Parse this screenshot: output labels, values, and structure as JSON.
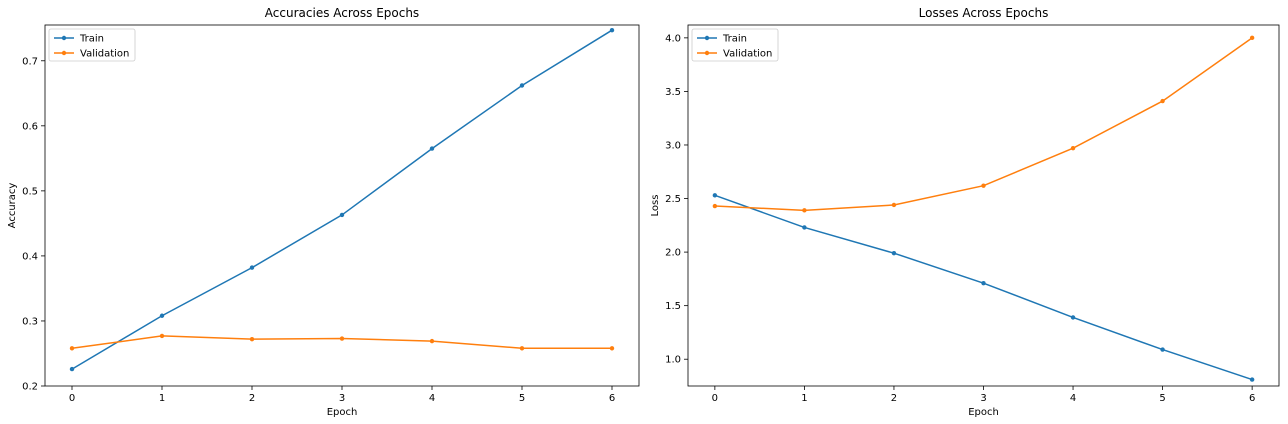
{
  "chart_data": [
    {
      "type": "line",
      "title": "Accuracies Across Epochs",
      "xlabel": "Epoch",
      "ylabel": "Accuracy",
      "x": [
        0,
        1,
        2,
        3,
        4,
        5,
        6
      ],
      "xlim": [
        -0.3,
        6.3
      ],
      "ylim": [
        0.2,
        0.755
      ],
      "xticks": [
        0,
        1,
        2,
        3,
        4,
        5,
        6
      ],
      "yticks": [
        0.2,
        0.3,
        0.4,
        0.5,
        0.6,
        0.7
      ],
      "ytick_labels": [
        "0.2",
        "0.3",
        "0.4",
        "0.5",
        "0.6",
        "0.7"
      ],
      "legend": "top-left",
      "grid": false,
      "series": [
        {
          "name": "Train",
          "color": "#1f77b4",
          "values": [
            0.226,
            0.308,
            0.382,
            0.463,
            0.565,
            0.662,
            0.747
          ]
        },
        {
          "name": "Validation",
          "color": "#ff7f0e",
          "values": [
            0.258,
            0.277,
            0.272,
            0.273,
            0.269,
            0.258,
            0.258
          ]
        }
      ]
    },
    {
      "type": "line",
      "title": "Losses Across Epochs",
      "xlabel": "Epoch",
      "ylabel": "Loss",
      "x": [
        0,
        1,
        2,
        3,
        4,
        5,
        6
      ],
      "xlim": [
        -0.3,
        6.3
      ],
      "ylim": [
        0.75,
        4.12
      ],
      "xticks": [
        0,
        1,
        2,
        3,
        4,
        5,
        6
      ],
      "yticks": [
        1.0,
        1.5,
        2.0,
        2.5,
        3.0,
        3.5,
        4.0
      ],
      "ytick_labels": [
        "1.0",
        "1.5",
        "2.0",
        "2.5",
        "3.0",
        "3.5",
        "4.0"
      ],
      "legend": "top-left",
      "grid": false,
      "series": [
        {
          "name": "Train",
          "color": "#1f77b4",
          "values": [
            2.53,
            2.23,
            1.99,
            1.71,
            1.39,
            1.09,
            0.81
          ]
        },
        {
          "name": "Validation",
          "color": "#ff7f0e",
          "values": [
            2.43,
            2.39,
            2.44,
            2.62,
            2.97,
            3.41,
            4.0
          ]
        }
      ]
    }
  ]
}
